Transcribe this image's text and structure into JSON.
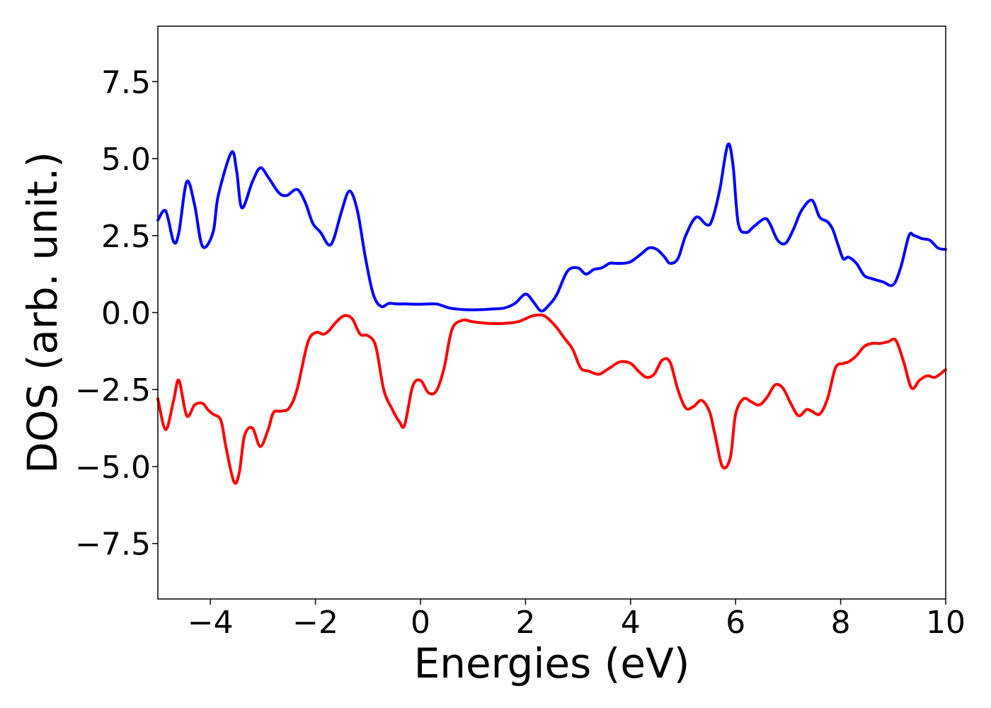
{
  "chart_data": {
    "type": "line",
    "title": "",
    "xlabel": "Energies (eV)",
    "ylabel": "DOS (arb. unit.)",
    "xlim": [
      -5,
      10
    ],
    "ylim": [
      -9.3,
      9.3
    ],
    "x_ticks": [
      -4,
      -2,
      0,
      2,
      4,
      6,
      8,
      10
    ],
    "x_tick_labels": [
      "−4",
      "−2",
      "0",
      "2",
      "4",
      "6",
      "8",
      "10"
    ],
    "y_ticks": [
      7.5,
      5.0,
      2.5,
      0.0,
      -2.5,
      -5.0,
      -7.5
    ],
    "y_tick_labels": [
      "7.5",
      "5.0",
      "2.5",
      "0.0",
      "−2.5",
      "−5.0",
      "−7.5"
    ],
    "grid": false,
    "series": [
      {
        "color": "#0000ff",
        "x": [
          -5.0,
          -4.85,
          -4.7,
          -4.6,
          -4.45,
          -4.3,
          -4.15,
          -3.95,
          -3.85,
          -3.6,
          -3.5,
          -3.4,
          -3.2,
          -3.05,
          -2.9,
          -2.7,
          -2.55,
          -2.35,
          -2.2,
          -2.05,
          -1.9,
          -1.75,
          -1.65,
          -1.5,
          -1.35,
          -1.2,
          -1.05,
          -0.9,
          -0.75,
          -0.6,
          -0.45,
          -0.3,
          0.0,
          0.3,
          0.55,
          0.8,
          1.0,
          1.2,
          1.4,
          1.6,
          1.8,
          2.0,
          2.15,
          2.3,
          2.45,
          2.6,
          2.8,
          3.0,
          3.15,
          3.3,
          3.45,
          3.6,
          3.7,
          3.85,
          4.0,
          4.2,
          4.35,
          4.5,
          4.65,
          4.75,
          4.9,
          5.05,
          5.25,
          5.45,
          5.55,
          5.7,
          5.85,
          5.95,
          6.05,
          6.2,
          6.35,
          6.55,
          6.65,
          6.8,
          6.95,
          7.1,
          7.25,
          7.45,
          7.6,
          7.75,
          7.85,
          7.95,
          8.05,
          8.15,
          8.3,
          8.45,
          8.6,
          8.8,
          9.0,
          9.15,
          9.3,
          9.4,
          9.55,
          9.7,
          9.85,
          10.0
        ],
        "y": [
          3.0,
          3.3,
          2.3,
          2.6,
          4.25,
          3.5,
          2.15,
          2.6,
          3.8,
          5.2,
          4.6,
          3.4,
          4.25,
          4.7,
          4.4,
          3.9,
          3.8,
          4.0,
          3.6,
          2.9,
          2.6,
          2.2,
          2.4,
          3.3,
          3.95,
          3.3,
          1.8,
          0.6,
          0.2,
          0.3,
          0.28,
          0.28,
          0.27,
          0.28,
          0.15,
          0.1,
          0.09,
          0.1,
          0.12,
          0.15,
          0.3,
          0.6,
          0.35,
          0.05,
          0.25,
          0.6,
          1.35,
          1.45,
          1.25,
          1.4,
          1.45,
          1.6,
          1.6,
          1.6,
          1.65,
          1.9,
          2.1,
          2.05,
          1.8,
          1.6,
          1.75,
          2.5,
          3.1,
          2.85,
          3.0,
          4.0,
          5.45,
          4.8,
          2.9,
          2.6,
          2.8,
          3.05,
          2.9,
          2.35,
          2.25,
          2.7,
          3.3,
          3.65,
          3.1,
          2.95,
          2.7,
          2.2,
          1.75,
          1.8,
          1.6,
          1.2,
          1.1,
          1.0,
          0.9,
          1.5,
          2.5,
          2.5,
          2.4,
          2.35,
          2.1,
          2.05
        ]
      },
      {
        "color": "#ff0000",
        "x": [
          -5.0,
          -4.85,
          -4.7,
          -4.6,
          -4.45,
          -4.3,
          -4.15,
          -4.05,
          -3.95,
          -3.8,
          -3.7,
          -3.55,
          -3.45,
          -3.35,
          -3.2,
          -3.05,
          -2.9,
          -2.8,
          -2.65,
          -2.5,
          -2.35,
          -2.15,
          -2.0,
          -1.85,
          -1.75,
          -1.6,
          -1.45,
          -1.3,
          -1.15,
          -1.0,
          -0.85,
          -0.7,
          -0.55,
          -0.4,
          -0.3,
          -0.15,
          0.0,
          0.15,
          0.3,
          0.45,
          0.6,
          0.8,
          1.0,
          1.3,
          1.6,
          1.85,
          2.0,
          2.15,
          2.35,
          2.55,
          2.75,
          2.9,
          3.05,
          3.2,
          3.4,
          3.6,
          3.8,
          4.0,
          4.15,
          4.3,
          4.45,
          4.6,
          4.75,
          4.9,
          5.05,
          5.2,
          5.35,
          5.5,
          5.6,
          5.75,
          5.9,
          6.0,
          6.15,
          6.3,
          6.45,
          6.6,
          6.75,
          6.9,
          7.05,
          7.2,
          7.35,
          7.45,
          7.6,
          7.75,
          7.9,
          8.05,
          8.15,
          8.3,
          8.45,
          8.6,
          8.75,
          8.9,
          9.05,
          9.2,
          9.35,
          9.5,
          9.65,
          9.8,
          10.0
        ],
        "y": [
          -2.8,
          -3.8,
          -2.85,
          -2.2,
          -3.35,
          -3.0,
          -2.95,
          -3.15,
          -3.3,
          -3.5,
          -4.4,
          -5.5,
          -5.2,
          -4.0,
          -3.75,
          -4.35,
          -3.8,
          -3.25,
          -3.2,
          -3.1,
          -2.5,
          -1.0,
          -0.65,
          -0.7,
          -0.6,
          -0.3,
          -0.1,
          -0.2,
          -0.7,
          -0.75,
          -1.1,
          -2.5,
          -3.1,
          -3.55,
          -3.65,
          -2.4,
          -2.2,
          -2.6,
          -2.55,
          -1.8,
          -0.55,
          -0.25,
          -0.3,
          -0.35,
          -0.35,
          -0.3,
          -0.2,
          -0.1,
          -0.1,
          -0.4,
          -0.85,
          -1.2,
          -1.8,
          -1.9,
          -2.0,
          -1.8,
          -1.6,
          -1.65,
          -1.9,
          -2.1,
          -2.0,
          -1.55,
          -1.6,
          -2.5,
          -3.1,
          -3.05,
          -2.85,
          -3.2,
          -3.9,
          -5.0,
          -4.7,
          -3.3,
          -2.8,
          -2.9,
          -3.0,
          -2.75,
          -2.35,
          -2.45,
          -2.95,
          -3.35,
          -3.15,
          -3.2,
          -3.3,
          -2.8,
          -1.8,
          -1.65,
          -1.6,
          -1.4,
          -1.1,
          -1.0,
          -1.0,
          -0.95,
          -0.9,
          -1.6,
          -2.45,
          -2.2,
          -2.05,
          -2.1,
          -1.85
        ]
      }
    ]
  }
}
